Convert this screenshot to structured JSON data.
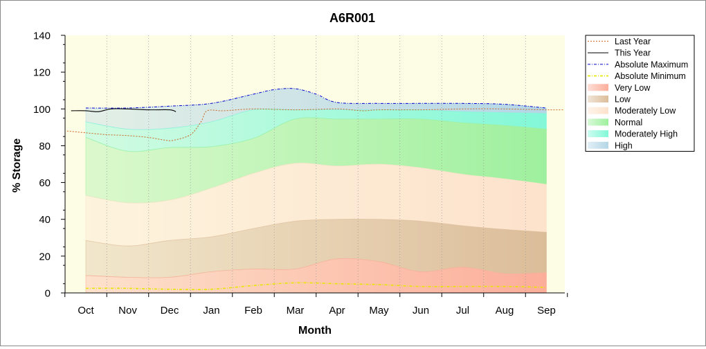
{
  "chart_data": {
    "type": "area",
    "title": "A6R001",
    "xlabel": "Month",
    "ylabel": "% Storage",
    "ylim": [
      0,
      140
    ],
    "yticks": [
      0,
      20,
      40,
      60,
      80,
      100,
      120,
      140
    ],
    "categories": [
      "Oct",
      "Nov",
      "Dec",
      "Jan",
      "Feb",
      "Mar",
      "Apr",
      "May",
      "Jun",
      "Jul",
      "Aug",
      "Sep"
    ],
    "legend_position": "right",
    "colors": {
      "plot_background": "#fdfde6",
      "very_low": "#fcae9a",
      "low": "#dcbd9a",
      "moderately_low": "#fde2cc",
      "normal": "#9ef09e",
      "moderately_high": "#82f8d8",
      "high": "#b4d6e6",
      "last_year": "#c8641e",
      "this_year": "#000000",
      "abs_max": "#0000cc",
      "abs_min": "#e6e600"
    },
    "legend": [
      {
        "name": "Last Year",
        "style": "dotted",
        "color": "#c8641e"
      },
      {
        "name": "This Year",
        "style": "solid",
        "color": "#000000"
      },
      {
        "name": "Absolute Maximum",
        "style": "dashdot",
        "color": "#0000cc"
      },
      {
        "name": "Absolute Minimum",
        "style": "dashdot",
        "color": "#e6e600"
      },
      {
        "name": "Very Low",
        "style": "box",
        "color": "#fcae9a"
      },
      {
        "name": "Low",
        "style": "box",
        "color": "#dcbd9a"
      },
      {
        "name": "Moderately Low",
        "style": "box",
        "color": "#fde2cc"
      },
      {
        "name": "Normal",
        "style": "box",
        "color": "#9ef09e"
      },
      {
        "name": "Moderately High",
        "style": "box",
        "color": "#82f8d8"
      },
      {
        "name": "High",
        "style": "box",
        "color": "#b4d6e6"
      }
    ],
    "band_month_positions": [
      0,
      1,
      2,
      3,
      4,
      5,
      6,
      7,
      8,
      9,
      10,
      11
    ],
    "bands": {
      "very_low_top": [
        9.5,
        8.5,
        8.5,
        11.5,
        13,
        13,
        18.5,
        17,
        11.5,
        14,
        10.5,
        11
      ],
      "low_top": [
        28.5,
        25.5,
        28.5,
        30.5,
        35,
        39,
        40,
        40,
        39,
        36.5,
        34.5,
        33
      ],
      "moderately_low_top": [
        53,
        49,
        50.5,
        57,
        65,
        70.5,
        69,
        70,
        68,
        64.5,
        62,
        59
      ],
      "normal_top": [
        84.5,
        77,
        79,
        79.5,
        84,
        94.5,
        94.5,
        94.5,
        94.5,
        92.5,
        91,
        89
      ],
      "moderately_high_top": [
        93,
        89,
        89.5,
        93,
        99.5,
        99.5,
        99.5,
        99.5,
        99.5,
        98.5,
        98,
        97.5
      ],
      "high_top": [
        100.5,
        100.5,
        101.5,
        103,
        108,
        111,
        103.5,
        103,
        103,
        103,
        102.5,
        100.5
      ]
    },
    "series": [
      {
        "name": "Last Year",
        "x": [
          -0.45,
          0,
          0.5,
          1,
          1.5,
          1.9,
          2.1,
          2.5,
          2.75,
          2.9,
          3.3,
          4,
          5,
          6,
          6.6,
          7,
          8,
          9,
          10,
          11,
          11.4
        ],
        "values": [
          88,
          87,
          86,
          85.5,
          84.5,
          83,
          83,
          86,
          93,
          99,
          99,
          100,
          99.5,
          100,
          99,
          99.5,
          99.5,
          100,
          100,
          99.5,
          99.5
        ]
      },
      {
        "name": "This Year",
        "x": [
          -0.35,
          0,
          0.3,
          0.6,
          1,
          1.5,
          2,
          2.15
        ],
        "values": [
          99,
          99,
          98.5,
          100,
          100,
          99.5,
          99.5,
          98.5
        ]
      },
      {
        "name": "Absolute Maximum",
        "x": [
          0,
          1,
          2,
          3,
          4,
          4.5,
          5,
          5.5,
          6,
          7,
          8,
          9,
          10,
          11
        ],
        "values": [
          100.5,
          100.5,
          101.5,
          103,
          108,
          110.5,
          111,
          108,
          103.5,
          103,
          103,
          103,
          102.5,
          100.5
        ]
      },
      {
        "name": "Absolute Minimum",
        "x": [
          0,
          1,
          2,
          3,
          4,
          5,
          6,
          7,
          8,
          9,
          10,
          11
        ],
        "values": [
          2.5,
          2.5,
          2,
          2,
          4,
          5.5,
          5,
          4.5,
          3.5,
          3.5,
          3.5,
          3
        ]
      }
    ]
  }
}
